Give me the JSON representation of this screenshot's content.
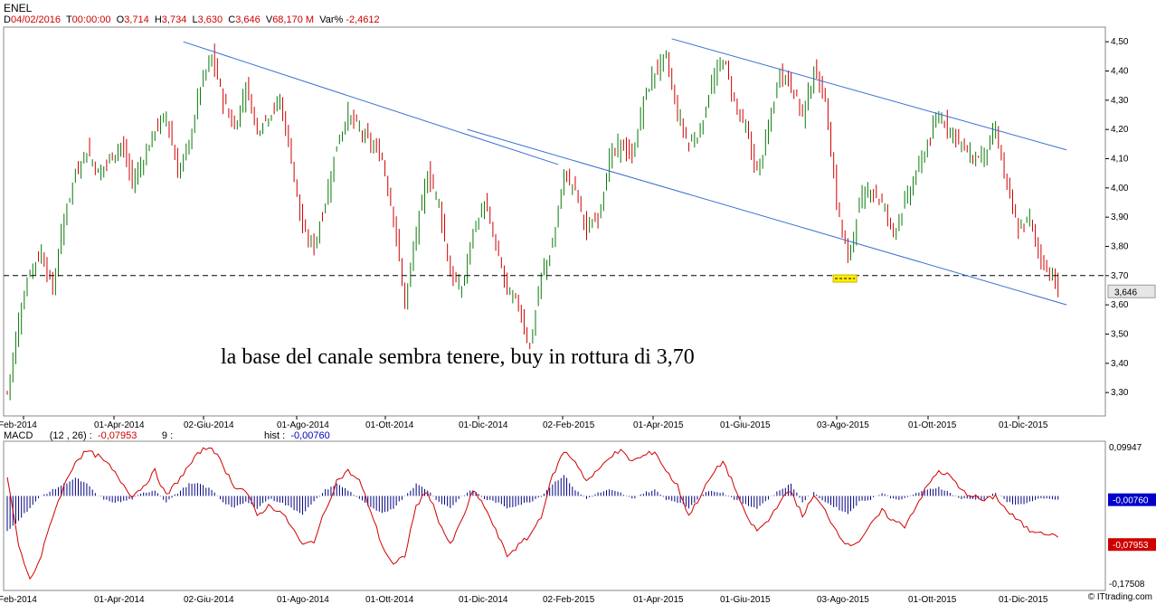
{
  "title": "ENEL",
  "info": [
    {
      "label": "D",
      "value": "04/02/2016"
    },
    {
      "label": "T",
      "value": "00:00:00"
    },
    {
      "label": "O",
      "value": "3,714"
    },
    {
      "label": "H",
      "value": "3,734"
    },
    {
      "label": "L",
      "value": "3,630"
    },
    {
      "label": "C",
      "value": "3,646"
    },
    {
      "label": "V",
      "value": "68,170 M"
    },
    {
      "label": "Var% ",
      "value": "-2,4612"
    }
  ],
  "macd_info": {
    "name": "MACD",
    "params": "(12 , 26) :",
    "macd_value": "-0,07953",
    "signal_label": "9 :",
    "hist_label": "hist :",
    "hist_value": "-0,00760"
  },
  "annotation": "la base del canale sembra tenere, buy in rottura di 3,70",
  "footer": "© ITtrading.com",
  "colors": {
    "candle_up": "#0a7a0a",
    "candle_down": "#d00000",
    "trendline": "#3a6fd0",
    "macd_line": "#d00000",
    "histogram": "#000080",
    "highlight": "#ffee00"
  },
  "chart_data": [
    {
      "type": "candlestick",
      "title": "ENEL",
      "y_ticks": [
        "4,50",
        "4,40",
        "4,30",
        "4,20",
        "4,10",
        "4,00",
        "3,90",
        "3,80",
        "3,70",
        "3,60",
        "3,50",
        "3,40",
        "3,30"
      ],
      "ylim": [
        3.22,
        4.55
      ],
      "x_ticks": [
        "Feb-2014",
        "01-Apr-2014",
        "02-Giu-2014",
        "01-Ago-2014",
        "01-Ott-2014",
        "01-Dic-2014",
        "02-Feb-2015",
        "01-Apr-2015",
        "01-Giu-2015",
        "03-Ago-2015",
        "01-Ott-2015",
        "01-Dic-2015"
      ],
      "last_price_label": "3,646",
      "last_price": 3.646,
      "horizontal_level": 3.7,
      "close_anchors": [
        [
          0,
          3.3
        ],
        [
          4,
          3.55
        ],
        [
          8,
          3.72
        ],
        [
          12,
          3.78
        ],
        [
          16,
          3.65
        ],
        [
          20,
          3.9
        ],
        [
          24,
          4.05
        ],
        [
          28,
          4.13
        ],
        [
          32,
          4.05
        ],
        [
          36,
          4.1
        ],
        [
          40,
          4.15
        ],
        [
          44,
          4.02
        ],
        [
          48,
          4.1
        ],
        [
          52,
          4.2
        ],
        [
          56,
          4.25
        ],
        [
          60,
          4.05
        ],
        [
          64,
          4.15
        ],
        [
          68,
          4.35
        ],
        [
          72,
          4.45
        ],
        [
          76,
          4.3
        ],
        [
          80,
          4.2
        ],
        [
          84,
          4.35
        ],
        [
          88,
          4.2
        ],
        [
          92,
          4.25
        ],
        [
          96,
          4.3
        ],
        [
          100,
          4.1
        ],
        [
          104,
          3.85
        ],
        [
          108,
          3.8
        ],
        [
          112,
          3.95
        ],
        [
          116,
          4.15
        ],
        [
          120,
          4.25
        ],
        [
          124,
          4.2
        ],
        [
          128,
          4.15
        ],
        [
          132,
          4.1
        ],
        [
          136,
          3.9
        ],
        [
          140,
          3.6
        ],
        [
          144,
          3.85
        ],
        [
          148,
          4.05
        ],
        [
          152,
          3.95
        ],
        [
          156,
          3.7
        ],
        [
          160,
          3.65
        ],
        [
          164,
          3.85
        ],
        [
          168,
          3.95
        ],
        [
          172,
          3.8
        ],
        [
          176,
          3.65
        ],
        [
          180,
          3.6
        ],
        [
          184,
          3.45
        ],
        [
          188,
          3.7
        ],
        [
          192,
          3.8
        ],
        [
          196,
          4.05
        ],
        [
          200,
          4.0
        ],
        [
          204,
          3.85
        ],
        [
          208,
          3.9
        ],
        [
          212,
          4.1
        ],
        [
          216,
          4.15
        ],
        [
          220,
          4.1
        ],
        [
          224,
          4.3
        ],
        [
          228,
          4.4
        ],
        [
          232,
          4.45
        ],
        [
          236,
          4.25
        ],
        [
          240,
          4.15
        ],
        [
          244,
          4.2
        ],
        [
          248,
          4.35
        ],
        [
          252,
          4.45
        ],
        [
          256,
          4.3
        ],
        [
          260,
          4.2
        ],
        [
          264,
          4.05
        ],
        [
          268,
          4.2
        ],
        [
          272,
          4.4
        ],
        [
          276,
          4.35
        ],
        [
          280,
          4.25
        ],
        [
          284,
          4.4
        ],
        [
          288,
          4.3
        ],
        [
          292,
          3.95
        ],
        [
          296,
          3.75
        ],
        [
          300,
          3.95
        ],
        [
          304,
          4.0
        ],
        [
          308,
          3.95
        ],
        [
          312,
          3.85
        ],
        [
          316,
          3.95
        ],
        [
          320,
          4.05
        ],
        [
          324,
          4.15
        ],
        [
          328,
          4.25
        ],
        [
          332,
          4.2
        ],
        [
          336,
          4.15
        ],
        [
          340,
          4.1
        ],
        [
          344,
          4.12
        ],
        [
          348,
          4.2
        ],
        [
          352,
          4.0
        ],
        [
          356,
          3.85
        ],
        [
          360,
          3.9
        ],
        [
          364,
          3.75
        ],
        [
          368,
          3.7
        ],
        [
          370,
          3.646
        ]
      ],
      "trendlines": [
        {
          "from": [
            62,
            4.5
          ],
          "to": [
            194,
            4.08
          ]
        },
        {
          "from": [
            234,
            4.51
          ],
          "to": [
            373,
            4.13
          ]
        },
        {
          "from": [
            162,
            4.2
          ],
          "to": [
            373,
            3.6
          ]
        }
      ],
      "highlight": {
        "bar": 294,
        "price": 3.69
      }
    },
    {
      "type": "line",
      "title": "MACD",
      "y_ticks": [
        "0,09947",
        "-0,17508"
      ],
      "ylim": [
        -0.19,
        0.11
      ],
      "macd_value_label": "-0,07953",
      "hist_value_label": "-0,00760",
      "macd_anchors": [
        [
          0,
          0.04
        ],
        [
          4,
          -0.1
        ],
        [
          8,
          -0.17
        ],
        [
          12,
          -0.12
        ],
        [
          16,
          -0.04
        ],
        [
          20,
          0.02
        ],
        [
          24,
          0.07
        ],
        [
          28,
          0.09
        ],
        [
          32,
          0.08
        ],
        [
          36,
          0.06
        ],
        [
          40,
          0.03
        ],
        [
          44,
          0.0
        ],
        [
          48,
          0.02
        ],
        [
          52,
          0.05
        ],
        [
          56,
          0.0
        ],
        [
          60,
          0.03
        ],
        [
          64,
          0.06
        ],
        [
          68,
          0.09
        ],
        [
          72,
          0.1
        ],
        [
          76,
          0.06
        ],
        [
          80,
          0.02
        ],
        [
          84,
          0.01
        ],
        [
          88,
          -0.04
        ],
        [
          92,
          -0.02
        ],
        [
          96,
          -0.03
        ],
        [
          100,
          -0.06
        ],
        [
          104,
          -0.1
        ],
        [
          108,
          -0.09
        ],
        [
          112,
          -0.03
        ],
        [
          116,
          0.03
        ],
        [
          120,
          0.05
        ],
        [
          124,
          0.03
        ],
        [
          128,
          -0.03
        ],
        [
          132,
          -0.1
        ],
        [
          136,
          -0.14
        ],
        [
          140,
          -0.12
        ],
        [
          144,
          -0.02
        ],
        [
          148,
          0.01
        ],
        [
          152,
          -0.05
        ],
        [
          156,
          -0.1
        ],
        [
          160,
          -0.05
        ],
        [
          164,
          0.01
        ],
        [
          168,
          -0.02
        ],
        [
          172,
          -0.07
        ],
        [
          176,
          -0.12
        ],
        [
          180,
          -0.1
        ],
        [
          184,
          -0.08
        ],
        [
          188,
          -0.04
        ],
        [
          192,
          0.04
        ],
        [
          196,
          0.09
        ],
        [
          200,
          0.07
        ],
        [
          204,
          0.03
        ],
        [
          208,
          0.05
        ],
        [
          212,
          0.08
        ],
        [
          216,
          0.09
        ],
        [
          220,
          0.07
        ],
        [
          224,
          0.08
        ],
        [
          228,
          0.09
        ],
        [
          232,
          0.05
        ],
        [
          236,
          0.02
        ],
        [
          240,
          -0.04
        ],
        [
          244,
          0.0
        ],
        [
          248,
          0.04
        ],
        [
          252,
          0.07
        ],
        [
          256,
          0.02
        ],
        [
          260,
          -0.04
        ],
        [
          264,
          -0.07
        ],
        [
          268,
          -0.05
        ],
        [
          272,
          -0.01
        ],
        [
          276,
          0.01
        ],
        [
          280,
          -0.04
        ],
        [
          284,
          0.0
        ],
        [
          288,
          -0.03
        ],
        [
          292,
          -0.07
        ],
        [
          296,
          -0.1
        ],
        [
          300,
          -0.09
        ],
        [
          304,
          -0.06
        ],
        [
          308,
          -0.03
        ],
        [
          312,
          -0.05
        ],
        [
          316,
          -0.06
        ],
        [
          320,
          -0.02
        ],
        [
          324,
          0.02
        ],
        [
          328,
          0.05
        ],
        [
          332,
          0.04
        ],
        [
          336,
          0.01
        ],
        [
          340,
          0.0
        ],
        [
          344,
          -0.01
        ],
        [
          348,
          0.0
        ],
        [
          352,
          -0.03
        ],
        [
          356,
          -0.05
        ],
        [
          360,
          -0.07
        ],
        [
          364,
          -0.07
        ],
        [
          368,
          -0.08
        ],
        [
          370,
          -0.0795
        ]
      ],
      "hist_anchors": [
        [
          0,
          -0.06
        ],
        [
          6,
          -0.03
        ],
        [
          12,
          0.0
        ],
        [
          16,
          0.01
        ],
        [
          20,
          0.02
        ],
        [
          24,
          0.03
        ],
        [
          28,
          0.02
        ],
        [
          32,
          0.0
        ],
        [
          36,
          -0.01
        ],
        [
          40,
          -0.01
        ],
        [
          44,
          -0.005
        ],
        [
          48,
          0.005
        ],
        [
          52,
          0.01
        ],
        [
          56,
          -0.01
        ],
        [
          60,
          0.005
        ],
        [
          64,
          0.02
        ],
        [
          68,
          0.02
        ],
        [
          72,
          0.01
        ],
        [
          76,
          -0.01
        ],
        [
          80,
          -0.02
        ],
        [
          84,
          -0.01
        ],
        [
          88,
          -0.02
        ],
        [
          92,
          -0.005
        ],
        [
          96,
          -0.01
        ],
        [
          100,
          -0.02
        ],
        [
          104,
          -0.03
        ],
        [
          108,
          -0.01
        ],
        [
          112,
          0.01
        ],
        [
          116,
          0.02
        ],
        [
          120,
          0.01
        ],
        [
          124,
          -0.005
        ],
        [
          128,
          -0.02
        ],
        [
          132,
          -0.03
        ],
        [
          136,
          -0.02
        ],
        [
          140,
          0.0
        ],
        [
          144,
          0.02
        ],
        [
          148,
          0.01
        ],
        [
          152,
          -0.01
        ],
        [
          156,
          -0.02
        ],
        [
          160,
          0.0
        ],
        [
          164,
          0.01
        ],
        [
          168,
          -0.005
        ],
        [
          172,
          -0.01
        ],
        [
          176,
          -0.02
        ],
        [
          180,
          -0.015
        ],
        [
          184,
          -0.01
        ],
        [
          188,
          0.0
        ],
        [
          192,
          0.02
        ],
        [
          196,
          0.035
        ],
        [
          200,
          0.01
        ],
        [
          204,
          -0.005
        ],
        [
          208,
          0.005
        ],
        [
          212,
          0.01
        ],
        [
          216,
          0.005
        ],
        [
          220,
          -0.005
        ],
        [
          224,
          0.005
        ],
        [
          228,
          0.01
        ],
        [
          232,
          -0.005
        ],
        [
          236,
          -0.01
        ],
        [
          240,
          -0.02
        ],
        [
          244,
          0.0
        ],
        [
          248,
          0.01
        ],
        [
          252,
          0.005
        ],
        [
          256,
          -0.005
        ],
        [
          260,
          -0.015
        ],
        [
          264,
          -0.02
        ],
        [
          268,
          -0.005
        ],
        [
          272,
          0.01
        ],
        [
          276,
          0.02
        ],
        [
          280,
          -0.01
        ],
        [
          284,
          0.005
        ],
        [
          288,
          -0.01
        ],
        [
          292,
          -0.02
        ],
        [
          296,
          -0.03
        ],
        [
          300,
          -0.01
        ],
        [
          304,
          -0.005
        ],
        [
          308,
          0.005
        ],
        [
          312,
          -0.005
        ],
        [
          316,
          -0.005
        ],
        [
          320,
          0.005
        ],
        [
          324,
          0.01
        ],
        [
          328,
          0.015
        ],
        [
          332,
          0.005
        ],
        [
          336,
          -0.005
        ],
        [
          340,
          -0.005
        ],
        [
          344,
          -0.005
        ],
        [
          348,
          0.005
        ],
        [
          352,
          -0.01
        ],
        [
          356,
          -0.015
        ],
        [
          360,
          -0.01
        ],
        [
          364,
          -0.005
        ],
        [
          368,
          -0.005
        ],
        [
          370,
          -0.0076
        ]
      ]
    }
  ]
}
